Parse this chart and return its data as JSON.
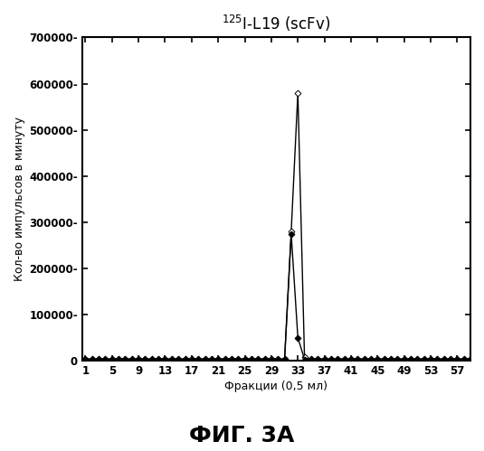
{
  "title": "$^{125}$I-L19 (scFv)",
  "xlabel": "Фракции (0,5 мл)",
  "ylabel": "Кол-во импульсов в минуту",
  "caption": "ФИГ. 3А",
  "ylim": [
    0,
    700000
  ],
  "yticks": [
    0,
    100000,
    200000,
    300000,
    400000,
    500000,
    600000,
    700000
  ],
  "ytick_labels": [
    "0",
    "100000-",
    "200000-",
    "300000-",
    "400000-",
    "500000-",
    "600000-",
    "700000-"
  ],
  "xtick_positions": [
    1,
    5,
    9,
    13,
    17,
    21,
    25,
    29,
    33,
    37,
    41,
    45,
    49,
    53,
    57
  ],
  "xtick_labels": [
    "1",
    "5",
    "9",
    "13",
    "17",
    "21",
    "25",
    "29",
    "33",
    "37",
    "41",
    "45",
    "49",
    "53",
    "57"
  ],
  "xlim": [
    0.5,
    59
  ],
  "series1_x": [
    1,
    2,
    3,
    4,
    5,
    6,
    7,
    8,
    9,
    10,
    11,
    12,
    13,
    14,
    15,
    16,
    17,
    18,
    19,
    20,
    21,
    22,
    23,
    24,
    25,
    26,
    27,
    28,
    29,
    30,
    31,
    32,
    33,
    34,
    35,
    36,
    37,
    38,
    39,
    40,
    41,
    42,
    43,
    44,
    45,
    46,
    47,
    48,
    49,
    50,
    51,
    52,
    53,
    54,
    55,
    56,
    57,
    58,
    59
  ],
  "series1_y": [
    2000,
    2000,
    2000,
    2000,
    2000,
    2000,
    2000,
    2000,
    2000,
    2000,
    2000,
    2000,
    2000,
    2000,
    2000,
    2000,
    2000,
    2000,
    2000,
    2000,
    2000,
    2000,
    2000,
    2000,
    2000,
    2000,
    2000,
    2000,
    2000,
    2000,
    2000,
    280000,
    580000,
    8000,
    2000,
    2000,
    2000,
    2000,
    2000,
    2000,
    2000,
    2000,
    2000,
    2000,
    2000,
    2000,
    2000,
    2000,
    2000,
    2000,
    2000,
    2000,
    2000,
    2000,
    2000,
    2000,
    2000,
    2000,
    2000
  ],
  "series2_x": [
    1,
    2,
    3,
    4,
    5,
    6,
    7,
    8,
    9,
    10,
    11,
    12,
    13,
    14,
    15,
    16,
    17,
    18,
    19,
    20,
    21,
    22,
    23,
    24,
    25,
    26,
    27,
    28,
    29,
    30,
    31,
    32,
    33,
    34,
    35,
    36,
    37,
    38,
    39,
    40,
    41,
    42,
    43,
    44,
    45,
    46,
    47,
    48,
    49,
    50,
    51,
    52,
    53,
    54,
    55,
    56,
    57,
    58,
    59
  ],
  "series2_y": [
    4000,
    4000,
    4000,
    4000,
    4000,
    4000,
    4000,
    4000,
    4000,
    4000,
    4000,
    4000,
    4000,
    4000,
    4000,
    4000,
    4000,
    4000,
    4000,
    4000,
    4000,
    4000,
    4000,
    4000,
    4000,
    4000,
    4000,
    4000,
    4000,
    4000,
    4000,
    275000,
    50000,
    3000,
    4000,
    4000,
    4000,
    4000,
    4000,
    4000,
    4000,
    4000,
    4000,
    4000,
    4000,
    4000,
    4000,
    4000,
    4000,
    4000,
    4000,
    4000,
    4000,
    4000,
    4000,
    4000,
    4000,
    4000,
    4000
  ],
  "bg_color": "#ffffff",
  "line_color": "#000000"
}
